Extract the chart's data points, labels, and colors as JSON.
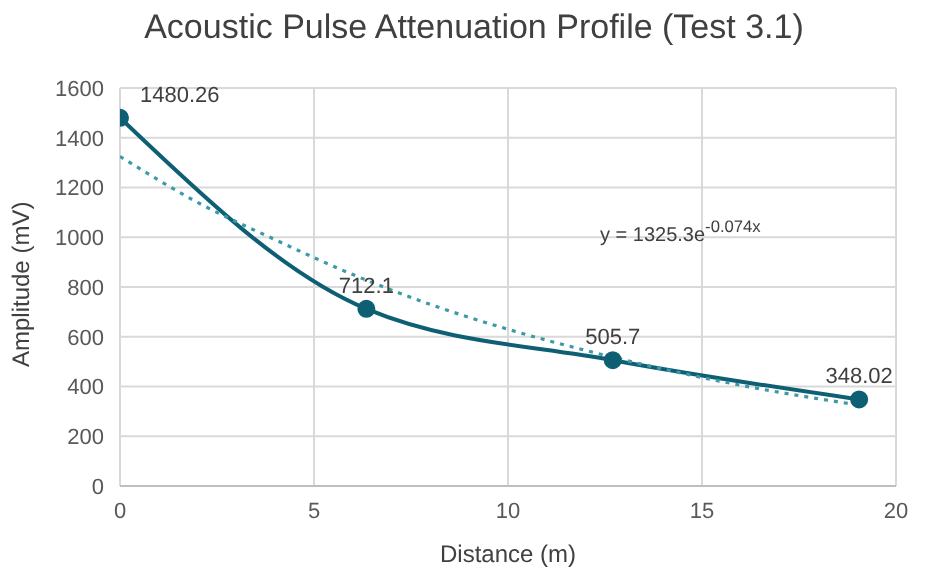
{
  "chart_data": {
    "type": "line",
    "title": "Acoustic Pulse Attenuation Profile (Test 3.1)",
    "xlabel": "Distance (m)",
    "ylabel": "Amplitude (mV)",
    "x": [
      0,
      6.35,
      12.7,
      19.05
    ],
    "series": [
      {
        "color": "#0e5f74",
        "values": [
          1480.26,
          712.1,
          505.7,
          348.02
        ],
        "marker": "circle",
        "line_style": "solid"
      },
      {
        "type": "line",
        "color": "#3a9aa8",
        "x": [
          0,
          2,
          4,
          6,
          8,
          10,
          12,
          14,
          16,
          19.05
        ],
        "values": [
          1325,
          1140,
          990,
          850,
          730,
          630,
          545,
          470,
          405,
          325
        ],
        "marker": "none",
        "line_style": "dotted",
        "data_labels": false
      }
    ],
    "data_labels": true,
    "xlim": [
      0,
      20
    ],
    "xticks": [
      0,
      5,
      10,
      15,
      20
    ],
    "ylim": [
      0,
      1600
    ],
    "yticks": [
      0,
      200,
      400,
      600,
      800,
      1000,
      1200,
      1400,
      1600
    ],
    "grid": true,
    "legend": false,
    "annotations": [
      "y = 1325.3e$^{-0.074x}$"
    ]
  }
}
